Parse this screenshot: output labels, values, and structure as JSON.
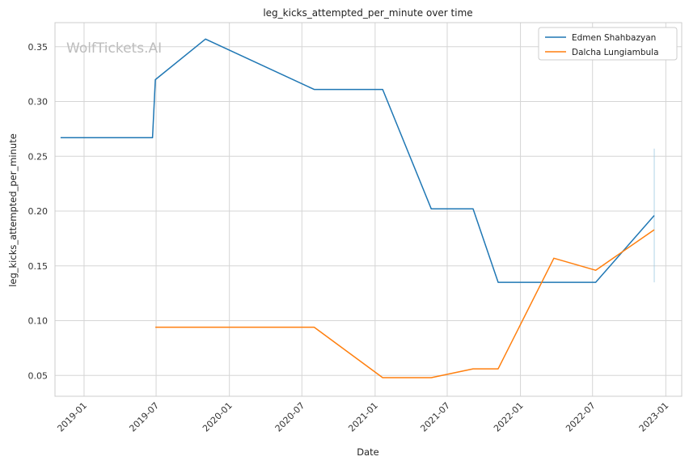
{
  "chart_data": {
    "type": "line",
    "title": "leg_kicks_attempted_per_minute over time",
    "xlabel": "Date",
    "ylabel": "leg_kicks_attempted_per_minute",
    "watermark": "WolfTickets.AI",
    "x_type": "date",
    "xlim": [
      "2018-10-20",
      "2023-02-10"
    ],
    "ylim": [
      0.031,
      0.372
    ],
    "x_ticks": [
      {
        "date": "2019-01-01",
        "label": "2019-01"
      },
      {
        "date": "2019-07-01",
        "label": "2019-07"
      },
      {
        "date": "2020-01-01",
        "label": "2020-01"
      },
      {
        "date": "2020-07-01",
        "label": "2020-07"
      },
      {
        "date": "2021-01-01",
        "label": "2021-01"
      },
      {
        "date": "2021-07-01",
        "label": "2021-07"
      },
      {
        "date": "2022-01-01",
        "label": "2022-01"
      },
      {
        "date": "2022-07-01",
        "label": "2022-07"
      },
      {
        "date": "2023-01-01",
        "label": "2023-01"
      }
    ],
    "y_ticks": [
      {
        "value": 0.05,
        "label": "0.05"
      },
      {
        "value": 0.1,
        "label": "0.10"
      },
      {
        "value": 0.15,
        "label": "0.15"
      },
      {
        "value": 0.2,
        "label": "0.20"
      },
      {
        "value": 0.25,
        "label": "0.25"
      },
      {
        "value": 0.3,
        "label": "0.30"
      },
      {
        "value": 0.35,
        "label": "0.35"
      }
    ],
    "grid": true,
    "legend_position": "top-right",
    "series": [
      {
        "name": "Edmen Shahbazyan",
        "color": "#1f77b4",
        "points": [
          {
            "x": "2018-11-03",
            "y": 0.267
          },
          {
            "x": "2019-06-22",
            "y": 0.267
          },
          {
            "x": "2019-06-29",
            "y": 0.32
          },
          {
            "x": "2019-11-02",
            "y": 0.357
          },
          {
            "x": "2020-08-01",
            "y": 0.311
          },
          {
            "x": "2021-01-20",
            "y": 0.311
          },
          {
            "x": "2021-05-22",
            "y": 0.202
          },
          {
            "x": "2021-09-04",
            "y": 0.202
          },
          {
            "x": "2021-11-06",
            "y": 0.135
          },
          {
            "x": "2022-07-09",
            "y": 0.135
          },
          {
            "x": "2022-12-03",
            "y": 0.196
          }
        ]
      },
      {
        "name": "Dalcha Lungiambula",
        "color": "#ff7f0e",
        "points": [
          {
            "x": "2019-06-29",
            "y": 0.094
          },
          {
            "x": "2020-08-01",
            "y": 0.094
          },
          {
            "x": "2021-01-20",
            "y": 0.048
          },
          {
            "x": "2021-05-22",
            "y": 0.048
          },
          {
            "x": "2021-09-04",
            "y": 0.056
          },
          {
            "x": "2021-11-06",
            "y": 0.056
          },
          {
            "x": "2022-03-26",
            "y": 0.157
          },
          {
            "x": "2022-07-09",
            "y": 0.146
          },
          {
            "x": "2022-12-03",
            "y": 0.183
          }
        ]
      }
    ],
    "annotations": [
      {
        "kind": "vertical-line",
        "x": "2022-12-03",
        "y_from": 0.135,
        "y_to": 0.257,
        "color": "#9ecae1"
      }
    ]
  }
}
